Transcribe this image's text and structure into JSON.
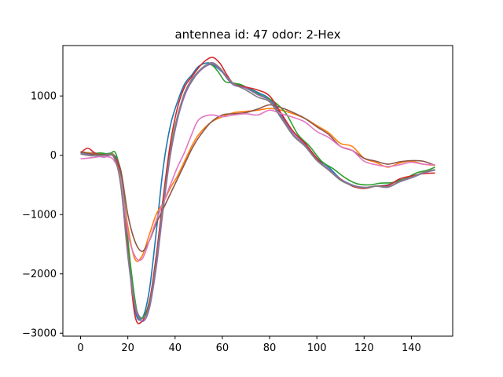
{
  "chart_data": {
    "type": "line",
    "title": "antennea id: 47    odor: 2-Hex",
    "xlabel": "",
    "ylabel": "",
    "xlim": [
      -7.5,
      157.5
    ],
    "ylim": [
      -3050,
      1850
    ],
    "grid": false,
    "x_ticks": [
      0,
      20,
      40,
      60,
      80,
      100,
      120,
      140
    ],
    "x_tick_labels": [
      "0",
      "20",
      "40",
      "60",
      "80",
      "100",
      "120",
      "140"
    ],
    "y_ticks": [
      -3000,
      -2000,
      -1000,
      0,
      1000
    ],
    "y_tick_labels": [
      "−3000",
      "−2000",
      "−1000",
      "0",
      "1000"
    ],
    "series": [
      {
        "name": "trace-1",
        "color": "#1f77b4",
        "points": [
          [
            0,
            50
          ],
          [
            5,
            40
          ],
          [
            10,
            20
          ],
          [
            14,
            10
          ],
          [
            17,
            -300
          ],
          [
            20,
            -1500
          ],
          [
            23,
            -2600
          ],
          [
            26,
            -2750
          ],
          [
            29,
            -2300
          ],
          [
            32,
            -1300
          ],
          [
            35,
            -200
          ],
          [
            38,
            500
          ],
          [
            41,
            900
          ],
          [
            44,
            1200
          ],
          [
            47,
            1350
          ],
          [
            50,
            1500
          ],
          [
            54,
            1560
          ],
          [
            57,
            1500
          ],
          [
            60,
            1400
          ],
          [
            63,
            1250
          ],
          [
            66,
            1200
          ],
          [
            70,
            1150
          ],
          [
            75,
            1060
          ],
          [
            80,
            950
          ],
          [
            85,
            680
          ],
          [
            90,
            400
          ],
          [
            95,
            200
          ],
          [
            100,
            -50
          ],
          [
            105,
            -200
          ],
          [
            110,
            -400
          ],
          [
            115,
            -500
          ],
          [
            120,
            -550
          ],
          [
            125,
            -520
          ],
          [
            130,
            -500
          ],
          [
            135,
            -420
          ],
          [
            140,
            -380
          ],
          [
            145,
            -300
          ],
          [
            150,
            -250
          ]
        ]
      },
      {
        "name": "trace-2",
        "color": "#ff7f0e",
        "points": [
          [
            0,
            60
          ],
          [
            5,
            30
          ],
          [
            10,
            10
          ],
          [
            14,
            0
          ],
          [
            17,
            -350
          ],
          [
            20,
            -1200
          ],
          [
            23,
            -1750
          ],
          [
            26,
            -1700
          ],
          [
            29,
            -1350
          ],
          [
            32,
            -1000
          ],
          [
            35,
            -800
          ],
          [
            38,
            -550
          ],
          [
            41,
            -350
          ],
          [
            44,
            -100
          ],
          [
            47,
            150
          ],
          [
            50,
            350
          ],
          [
            55,
            550
          ],
          [
            60,
            650
          ],
          [
            65,
            720
          ],
          [
            70,
            740
          ],
          [
            75,
            760
          ],
          [
            80,
            790
          ],
          [
            85,
            760
          ],
          [
            90,
            700
          ],
          [
            95,
            620
          ],
          [
            100,
            500
          ],
          [
            105,
            380
          ],
          [
            110,
            200
          ],
          [
            115,
            150
          ],
          [
            120,
            -50
          ],
          [
            125,
            -120
          ],
          [
            130,
            -200
          ],
          [
            135,
            -130
          ],
          [
            140,
            -100
          ],
          [
            145,
            -150
          ],
          [
            150,
            -170
          ]
        ]
      },
      {
        "name": "trace-3",
        "color": "#2ca02c",
        "points": [
          [
            0,
            60
          ],
          [
            4,
            10
          ],
          [
            8,
            40
          ],
          [
            12,
            20
          ],
          [
            15,
            20
          ],
          [
            18,
            -600
          ],
          [
            21,
            -1800
          ],
          [
            24,
            -2650
          ],
          [
            27,
            -2700
          ],
          [
            30,
            -2300
          ],
          [
            33,
            -1500
          ],
          [
            36,
            -500
          ],
          [
            39,
            300
          ],
          [
            42,
            800
          ],
          [
            45,
            1100
          ],
          [
            48,
            1300
          ],
          [
            51,
            1450
          ],
          [
            55,
            1530
          ],
          [
            58,
            1420
          ],
          [
            61,
            1250
          ],
          [
            64,
            1220
          ],
          [
            68,
            1190
          ],
          [
            72,
            1100
          ],
          [
            77,
            1000
          ],
          [
            82,
            900
          ],
          [
            87,
            700
          ],
          [
            92,
            350
          ],
          [
            97,
            150
          ],
          [
            102,
            -100
          ],
          [
            107,
            -230
          ],
          [
            112,
            -380
          ],
          [
            117,
            -480
          ],
          [
            122,
            -500
          ],
          [
            127,
            -470
          ],
          [
            132,
            -460
          ],
          [
            137,
            -400
          ],
          [
            142,
            -300
          ],
          [
            147,
            -250
          ],
          [
            150,
            -200
          ]
        ]
      },
      {
        "name": "trace-4",
        "color": "#d62728",
        "points": [
          [
            0,
            40
          ],
          [
            3,
            120
          ],
          [
            6,
            40
          ],
          [
            10,
            -20
          ],
          [
            14,
            -20
          ],
          [
            17,
            -400
          ],
          [
            20,
            -1600
          ],
          [
            23,
            -2700
          ],
          [
            26,
            -2800
          ],
          [
            29,
            -2500
          ],
          [
            32,
            -1700
          ],
          [
            35,
            -700
          ],
          [
            38,
            200
          ],
          [
            41,
            800
          ],
          [
            44,
            1150
          ],
          [
            47,
            1320
          ],
          [
            50,
            1480
          ],
          [
            53,
            1600
          ],
          [
            56,
            1650
          ],
          [
            59,
            1550
          ],
          [
            62,
            1350
          ],
          [
            65,
            1200
          ],
          [
            70,
            1150
          ],
          [
            75,
            1100
          ],
          [
            80,
            1000
          ],
          [
            85,
            700
          ],
          [
            90,
            400
          ],
          [
            95,
            200
          ],
          [
            100,
            -50
          ],
          [
            105,
            -250
          ],
          [
            110,
            -400
          ],
          [
            115,
            -520
          ],
          [
            120,
            -560
          ],
          [
            125,
            -520
          ],
          [
            130,
            -510
          ],
          [
            135,
            -400
          ],
          [
            140,
            -350
          ],
          [
            145,
            -310
          ],
          [
            150,
            -300
          ]
        ]
      },
      {
        "name": "trace-5",
        "color": "#9467bd",
        "points": [
          [
            0,
            30
          ],
          [
            5,
            0
          ],
          [
            10,
            -30
          ],
          [
            14,
            -20
          ],
          [
            17,
            -500
          ],
          [
            20,
            -1700
          ],
          [
            23,
            -2550
          ],
          [
            26,
            -2800
          ],
          [
            29,
            -2600
          ],
          [
            32,
            -1900
          ],
          [
            35,
            -900
          ],
          [
            38,
            0
          ],
          [
            41,
            600
          ],
          [
            44,
            1000
          ],
          [
            47,
            1250
          ],
          [
            50,
            1400
          ],
          [
            53,
            1500
          ],
          [
            56,
            1540
          ],
          [
            59,
            1450
          ],
          [
            62,
            1300
          ],
          [
            65,
            1180
          ],
          [
            70,
            1130
          ],
          [
            75,
            1020
          ],
          [
            80,
            920
          ],
          [
            85,
            650
          ],
          [
            90,
            360
          ],
          [
            95,
            170
          ],
          [
            100,
            -80
          ],
          [
            105,
            -230
          ],
          [
            110,
            -410
          ],
          [
            115,
            -500
          ],
          [
            120,
            -540
          ],
          [
            125,
            -520
          ],
          [
            130,
            -540
          ],
          [
            135,
            -450
          ],
          [
            140,
            -380
          ],
          [
            145,
            -300
          ],
          [
            150,
            -250
          ]
        ]
      },
      {
        "name": "trace-6",
        "color": "#8c564b",
        "points": [
          [
            0,
            60
          ],
          [
            5,
            20
          ],
          [
            10,
            10
          ],
          [
            14,
            -10
          ],
          [
            17,
            -250
          ],
          [
            20,
            -1000
          ],
          [
            23,
            -1450
          ],
          [
            26,
            -1620
          ],
          [
            29,
            -1450
          ],
          [
            32,
            -1150
          ],
          [
            35,
            -900
          ],
          [
            38,
            -650
          ],
          [
            41,
            -400
          ],
          [
            44,
            -150
          ],
          [
            47,
            100
          ],
          [
            50,
            300
          ],
          [
            55,
            550
          ],
          [
            60,
            680
          ],
          [
            65,
            700
          ],
          [
            70,
            720
          ],
          [
            75,
            780
          ],
          [
            80,
            850
          ],
          [
            85,
            800
          ],
          [
            90,
            720
          ],
          [
            95,
            620
          ],
          [
            100,
            480
          ],
          [
            105,
            350
          ],
          [
            110,
            150
          ],
          [
            115,
            80
          ],
          [
            120,
            -50
          ],
          [
            125,
            -100
          ],
          [
            130,
            -150
          ],
          [
            135,
            -110
          ],
          [
            140,
            -90
          ],
          [
            145,
            -100
          ],
          [
            150,
            -170
          ]
        ]
      },
      {
        "name": "trace-7",
        "color": "#e377c2",
        "points": [
          [
            0,
            -60
          ],
          [
            5,
            -40
          ],
          [
            10,
            -20
          ],
          [
            14,
            -80
          ],
          [
            17,
            -400
          ],
          [
            20,
            -1300
          ],
          [
            23,
            -1700
          ],
          [
            26,
            -1750
          ],
          [
            29,
            -1450
          ],
          [
            32,
            -1100
          ],
          [
            35,
            -800
          ],
          [
            38,
            -500
          ],
          [
            41,
            -200
          ],
          [
            44,
            50
          ],
          [
            47,
            350
          ],
          [
            50,
            600
          ],
          [
            55,
            680
          ],
          [
            60,
            650
          ],
          [
            65,
            680
          ],
          [
            70,
            700
          ],
          [
            75,
            680
          ],
          [
            80,
            760
          ],
          [
            85,
            700
          ],
          [
            90,
            640
          ],
          [
            95,
            560
          ],
          [
            100,
            400
          ],
          [
            105,
            300
          ],
          [
            110,
            150
          ],
          [
            115,
            80
          ],
          [
            120,
            -100
          ],
          [
            125,
            -160
          ],
          [
            130,
            -190
          ],
          [
            135,
            -160
          ],
          [
            140,
            -120
          ],
          [
            145,
            -150
          ],
          [
            150,
            -160
          ]
        ]
      },
      {
        "name": "trace-8",
        "color": "#7f7f7f",
        "points": [
          [
            0,
            20
          ],
          [
            5,
            -10
          ],
          [
            10,
            0
          ],
          [
            14,
            -30
          ],
          [
            17,
            -500
          ],
          [
            20,
            -1650
          ],
          [
            23,
            -2500
          ],
          [
            26,
            -2750
          ],
          [
            29,
            -2550
          ],
          [
            32,
            -1800
          ],
          [
            35,
            -800
          ],
          [
            38,
            50
          ],
          [
            41,
            650
          ],
          [
            44,
            1050
          ],
          [
            47,
            1280
          ],
          [
            50,
            1420
          ],
          [
            53,
            1520
          ],
          [
            56,
            1560
          ],
          [
            59,
            1470
          ],
          [
            62,
            1320
          ],
          [
            65,
            1200
          ],
          [
            70,
            1100
          ],
          [
            75,
            980
          ],
          [
            80,
            900
          ],
          [
            85,
            620
          ],
          [
            90,
            330
          ],
          [
            95,
            150
          ],
          [
            100,
            -90
          ],
          [
            105,
            -250
          ],
          [
            110,
            -420
          ],
          [
            115,
            -510
          ],
          [
            120,
            -550
          ],
          [
            125,
            -520
          ],
          [
            130,
            -530
          ],
          [
            135,
            -440
          ],
          [
            140,
            -370
          ],
          [
            145,
            -290
          ],
          [
            150,
            -240
          ]
        ]
      }
    ]
  }
}
